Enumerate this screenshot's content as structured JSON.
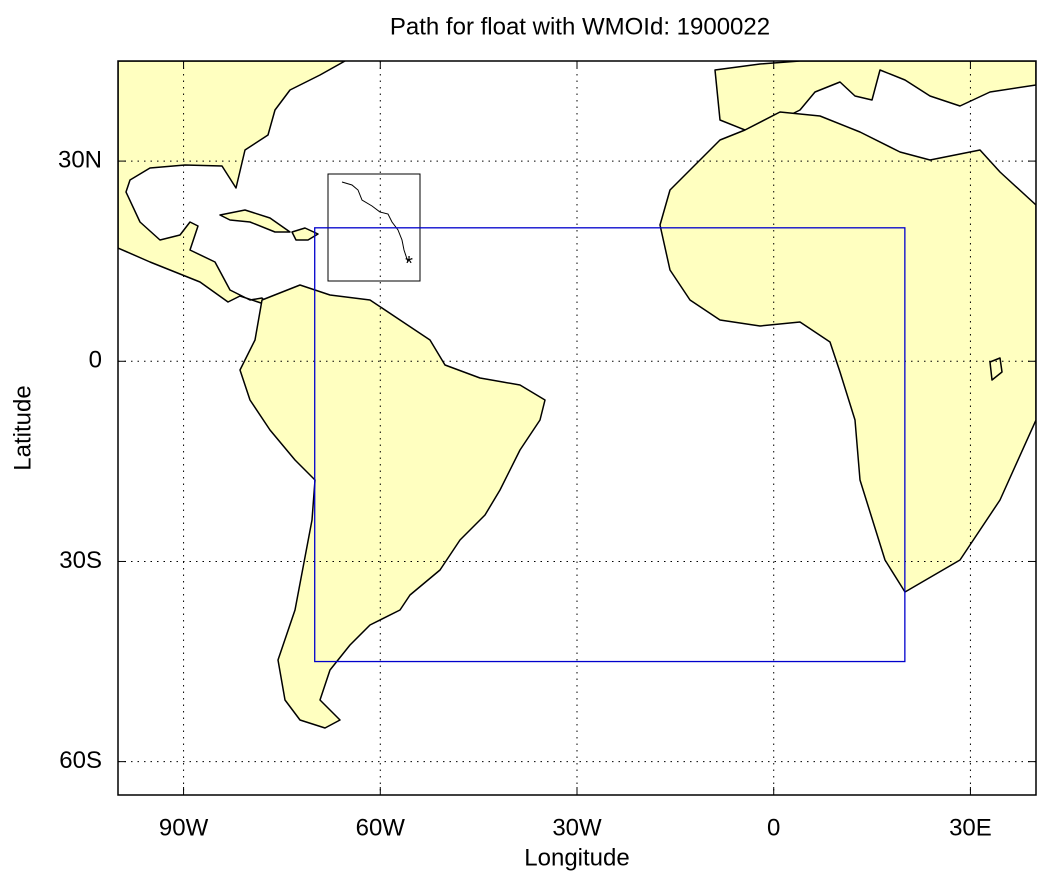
{
  "chart_data": {
    "type": "map",
    "title": "Path for float with WMOId: 1900022",
    "xlabel": "Longitude",
    "ylabel": "Latitude",
    "xlim": [
      -100,
      40
    ],
    "ylim": [
      -65,
      45
    ],
    "xticks": [
      {
        "value": -90,
        "label": "90W"
      },
      {
        "value": -60,
        "label": "60W"
      },
      {
        "value": -30,
        "label": "30W"
      },
      0,
      {
        "value": 30,
        "label": "30E"
      }
    ],
    "yticks": [
      {
        "value": 30,
        "label": "30N"
      },
      0,
      {
        "value": -30,
        "label": "30S"
      },
      {
        "value": -60,
        "label": "60S"
      }
    ],
    "grid": true,
    "land_color": "#ffffc0",
    "region": {
      "lon": [
        -70,
        20
      ],
      "lat": [
        -45,
        20
      ],
      "color": "#0000cc"
    }
  }
}
